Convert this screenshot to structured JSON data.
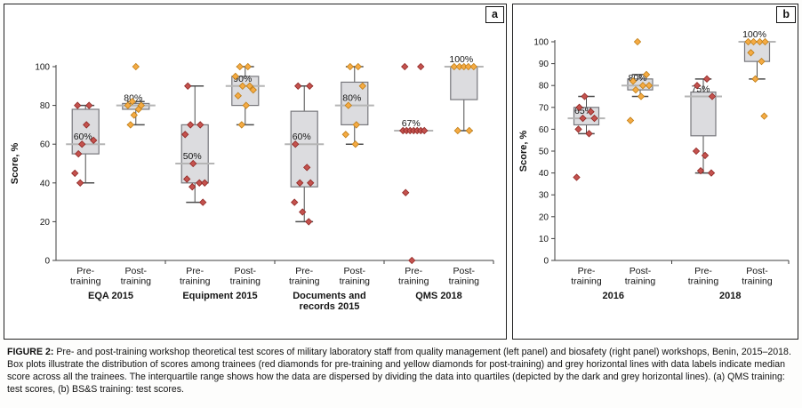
{
  "figure": {
    "caption_label": "FIGURE 2:",
    "caption_text": "Pre- and post-training workshop theoretical test scores of military laboratory staff from quality management (left panel) and biosafety (right panel) workshops, Benin, 2015–2018. Box plots illustrate the distribution of scores among trainees (red diamonds for pre-training and yellow diamonds for post-training) and grey horizontal lines with data labels indicate median score across all the trainees. The interquartile range shows how the data are dispersed by dividing the data into quartiles (depicted by the dark and grey horizontal lines). (a) QMS training: test scores, (b) BS&S training: test scores."
  },
  "colors": {
    "pre_point_fill": "#c4524e",
    "pre_point_stroke": "#8f2724",
    "post_point_fill": "#f5ab44",
    "post_point_stroke": "#bf7d14",
    "box_fill": "#dcdcdf",
    "box_edge": "#77777c",
    "whisker": "#4d4d4d",
    "median_line": "#b5b5b5",
    "axis": "#3f3f3f"
  },
  "chart_data": [
    {
      "type": "boxplot",
      "panel_label": "a",
      "ylabel": "Score, %",
      "ylim": [
        0,
        100
      ],
      "yticks": [
        0,
        20,
        40,
        60,
        80,
        100
      ],
      "legend_note": "red = pre-training, yellow = post-training",
      "groups": [
        {
          "label_lines": [
            "EQA 2015"
          ],
          "boxes": [
            {
              "series": "pre",
              "tick_lines": [
                "Pre-",
                "training"
              ],
              "median": 60,
              "q1": 55,
              "q3": 78,
              "whisker_low": 40,
              "whisker_high": 80,
              "median_label": "60%",
              "points": [
                {
                  "v": 80,
                  "dx": -9
                },
                {
                  "v": 80,
                  "dx": 4
                },
                {
                  "v": 70,
                  "dx": 1
                },
                {
                  "v": 62,
                  "dx": 9
                },
                {
                  "v": 60,
                  "dx": -4
                },
                {
                  "v": 55,
                  "dx": -8
                },
                {
                  "v": 45,
                  "dx": -12
                },
                {
                  "v": 40,
                  "dx": -6
                }
              ]
            },
            {
              "series": "post",
              "tick_lines": [
                "Post-",
                "training"
              ],
              "median": 80,
              "q1": 78,
              "q3": 81,
              "whisker_low": 70,
              "whisker_high": 82,
              "median_label": "80%",
              "points": [
                {
                  "v": 100,
                  "dx": 0
                },
                {
                  "v": 82,
                  "dx": -4
                },
                {
                  "v": 80,
                  "dx": 6
                },
                {
                  "v": 80,
                  "dx": -9
                },
                {
                  "v": 78,
                  "dx": 3
                },
                {
                  "v": 75,
                  "dx": -2
                },
                {
                  "v": 70,
                  "dx": -6
                }
              ]
            }
          ]
        },
        {
          "label_lines": [
            "Equipment 2015"
          ],
          "boxes": [
            {
              "series": "pre",
              "tick_lines": [
                "Pre-",
                "training"
              ],
              "median": 50,
              "q1": 40,
              "q3": 70,
              "whisker_low": 30,
              "whisker_high": 90,
              "median_label": "50%",
              "points": [
                {
                  "v": 90,
                  "dx": -8
                },
                {
                  "v": 70,
                  "dx": -5
                },
                {
                  "v": 70,
                  "dx": 6
                },
                {
                  "v": 65,
                  "dx": -11
                },
                {
                  "v": 50,
                  "dx": -2
                },
                {
                  "v": 42,
                  "dx": -9
                },
                {
                  "v": 40,
                  "dx": 5
                },
                {
                  "v": 40,
                  "dx": 11
                },
                {
                  "v": 38,
                  "dx": -3
                },
                {
                  "v": 30,
                  "dx": 9
                }
              ]
            },
            {
              "series": "post",
              "tick_lines": [
                "Post-",
                "training"
              ],
              "median": 90,
              "q1": 80,
              "q3": 95,
              "whisker_low": 70,
              "whisker_high": 100,
              "median_label": "90%",
              "points": [
                {
                  "v": 100,
                  "dx": -6
                },
                {
                  "v": 100,
                  "dx": 3
                },
                {
                  "v": 95,
                  "dx": -11
                },
                {
                  "v": 90,
                  "dx": -3
                },
                {
                  "v": 90,
                  "dx": 5
                },
                {
                  "v": 88,
                  "dx": 9
                },
                {
                  "v": 85,
                  "dx": -8
                },
                {
                  "v": 80,
                  "dx": 1
                },
                {
                  "v": 70,
                  "dx": -4
                }
              ]
            }
          ]
        },
        {
          "label_lines": [
            "Documents and",
            "records 2015"
          ],
          "boxes": [
            {
              "series": "pre",
              "tick_lines": [
                "Pre-",
                "training"
              ],
              "median": 60,
              "q1": 38,
              "q3": 77,
              "whisker_low": 20,
              "whisker_high": 90,
              "median_label": "60%",
              "points": [
                {
                  "v": 90,
                  "dx": -7
                },
                {
                  "v": 90,
                  "dx": 6
                },
                {
                  "v": 60,
                  "dx": -10
                },
                {
                  "v": 48,
                  "dx": 3
                },
                {
                  "v": 40,
                  "dx": -5
                },
                {
                  "v": 40,
                  "dx": 7
                },
                {
                  "v": 30,
                  "dx": -11
                },
                {
                  "v": 25,
                  "dx": -2
                },
                {
                  "v": 20,
                  "dx": 5
                }
              ]
            },
            {
              "series": "post",
              "tick_lines": [
                "Post-",
                "training"
              ],
              "median": 80,
              "q1": 70,
              "q3": 92,
              "whisker_low": 60,
              "whisker_high": 100,
              "median_label": "80%",
              "points": [
                {
                  "v": 100,
                  "dx": -5
                },
                {
                  "v": 100,
                  "dx": 4
                },
                {
                  "v": 90,
                  "dx": 9
                },
                {
                  "v": 80,
                  "dx": -7
                },
                {
                  "v": 70,
                  "dx": 2
                },
                {
                  "v": 65,
                  "dx": -10
                },
                {
                  "v": 60,
                  "dx": 1
                }
              ]
            }
          ]
        },
        {
          "label_lines": [
            "QMS 2018"
          ],
          "boxes": [
            {
              "series": "pre",
              "tick_lines": [
                "Pre-",
                "training"
              ],
              "median": 67,
              "q1": 67,
              "q3": 67,
              "whisker_low": 67,
              "whisker_high": 67,
              "median_label": "67%",
              "points": [
                {
                  "v": 100,
                  "dx": -10
                },
                {
                  "v": 100,
                  "dx": 8
                },
                {
                  "v": 67,
                  "dx": -12
                },
                {
                  "v": 67,
                  "dx": -8
                },
                {
                  "v": 67,
                  "dx": -4
                },
                {
                  "v": 67,
                  "dx": 0
                },
                {
                  "v": 67,
                  "dx": 4
                },
                {
                  "v": 67,
                  "dx": 8
                },
                {
                  "v": 67,
                  "dx": 12
                },
                {
                  "v": 35,
                  "dx": -9
                },
                {
                  "v": 0,
                  "dx": -2
                }
              ]
            },
            {
              "series": "post",
              "tick_lines": [
                "Post-",
                "training"
              ],
              "median": 100,
              "q1": 83,
              "q3": 100,
              "whisker_low": 67,
              "whisker_high": 100,
              "median_label": "100%",
              "points": [
                {
                  "v": 100,
                  "dx": -11
                },
                {
                  "v": 100,
                  "dx": -5
                },
                {
                  "v": 100,
                  "dx": 0
                },
                {
                  "v": 100,
                  "dx": 5
                },
                {
                  "v": 100,
                  "dx": 11
                },
                {
                  "v": 67,
                  "dx": -7
                },
                {
                  "v": 67,
                  "dx": 6
                }
              ]
            }
          ]
        }
      ]
    },
    {
      "type": "boxplot",
      "panel_label": "b",
      "ylabel": "Score, %",
      "ylim": [
        0,
        100
      ],
      "yticks": [
        0,
        10,
        20,
        30,
        40,
        50,
        60,
        70,
        80,
        90,
        100
      ],
      "legend_note": "red = pre-training, yellow = post-training",
      "groups": [
        {
          "label_lines": [
            "2016"
          ],
          "boxes": [
            {
              "series": "pre",
              "tick_lines": [
                "Pre-",
                "training"
              ],
              "median": 65,
              "q1": 62,
              "q3": 70,
              "whisker_low": 58,
              "whisker_high": 75,
              "median_label": "65%",
              "points": [
                {
                  "v": 75,
                  "dx": -2
                },
                {
                  "v": 70,
                  "dx": -8
                },
                {
                  "v": 68,
                  "dx": 5
                },
                {
                  "v": 65,
                  "dx": -4
                },
                {
                  "v": 65,
                  "dx": 9
                },
                {
                  "v": 60,
                  "dx": -9
                },
                {
                  "v": 58,
                  "dx": 3
                },
                {
                  "v": 38,
                  "dx": -11
                }
              ]
            },
            {
              "series": "post",
              "tick_lines": [
                "Post-",
                "training"
              ],
              "median": 80,
              "q1": 78,
              "q3": 83,
              "whisker_low": 75,
              "whisker_high": 85,
              "median_label": "80%",
              "points": [
                {
                  "v": 100,
                  "dx": -3
                },
                {
                  "v": 85,
                  "dx": 7
                },
                {
                  "v": 82,
                  "dx": -8
                },
                {
                  "v": 80,
                  "dx": 3
                },
                {
                  "v": 80,
                  "dx": 10
                },
                {
                  "v": 78,
                  "dx": -5
                },
                {
                  "v": 75,
                  "dx": 1
                },
                {
                  "v": 64,
                  "dx": -11
                }
              ]
            }
          ]
        },
        {
          "label_lines": [
            "2018"
          ],
          "boxes": [
            {
              "series": "pre",
              "tick_lines": [
                "Pre-",
                "training"
              ],
              "median": 75,
              "q1": 57,
              "q3": 77,
              "whisker_low": 40,
              "whisker_high": 83,
              "median_label": "75%",
              "points": [
                {
                  "v": 83,
                  "dx": 4
                },
                {
                  "v": 80,
                  "dx": -7
                },
                {
                  "v": 75,
                  "dx": 10
                },
                {
                  "v": 50,
                  "dx": -8
                },
                {
                  "v": 48,
                  "dx": 2
                },
                {
                  "v": 41,
                  "dx": -3
                },
                {
                  "v": 40,
                  "dx": 9
                }
              ]
            },
            {
              "series": "post",
              "tick_lines": [
                "Post-",
                "training"
              ],
              "median": 100,
              "q1": 91,
              "q3": 100,
              "whisker_low": 83,
              "whisker_high": 100,
              "median_label": "100%",
              "points": [
                {
                  "v": 100,
                  "dx": -10
                },
                {
                  "v": 100,
                  "dx": -4
                },
                {
                  "v": 100,
                  "dx": 3
                },
                {
                  "v": 100,
                  "dx": 9
                },
                {
                  "v": 95,
                  "dx": -7
                },
                {
                  "v": 91,
                  "dx": 5
                },
                {
                  "v": 83,
                  "dx": -2
                },
                {
                  "v": 66,
                  "dx": 8
                }
              ]
            }
          ]
        }
      ]
    }
  ]
}
